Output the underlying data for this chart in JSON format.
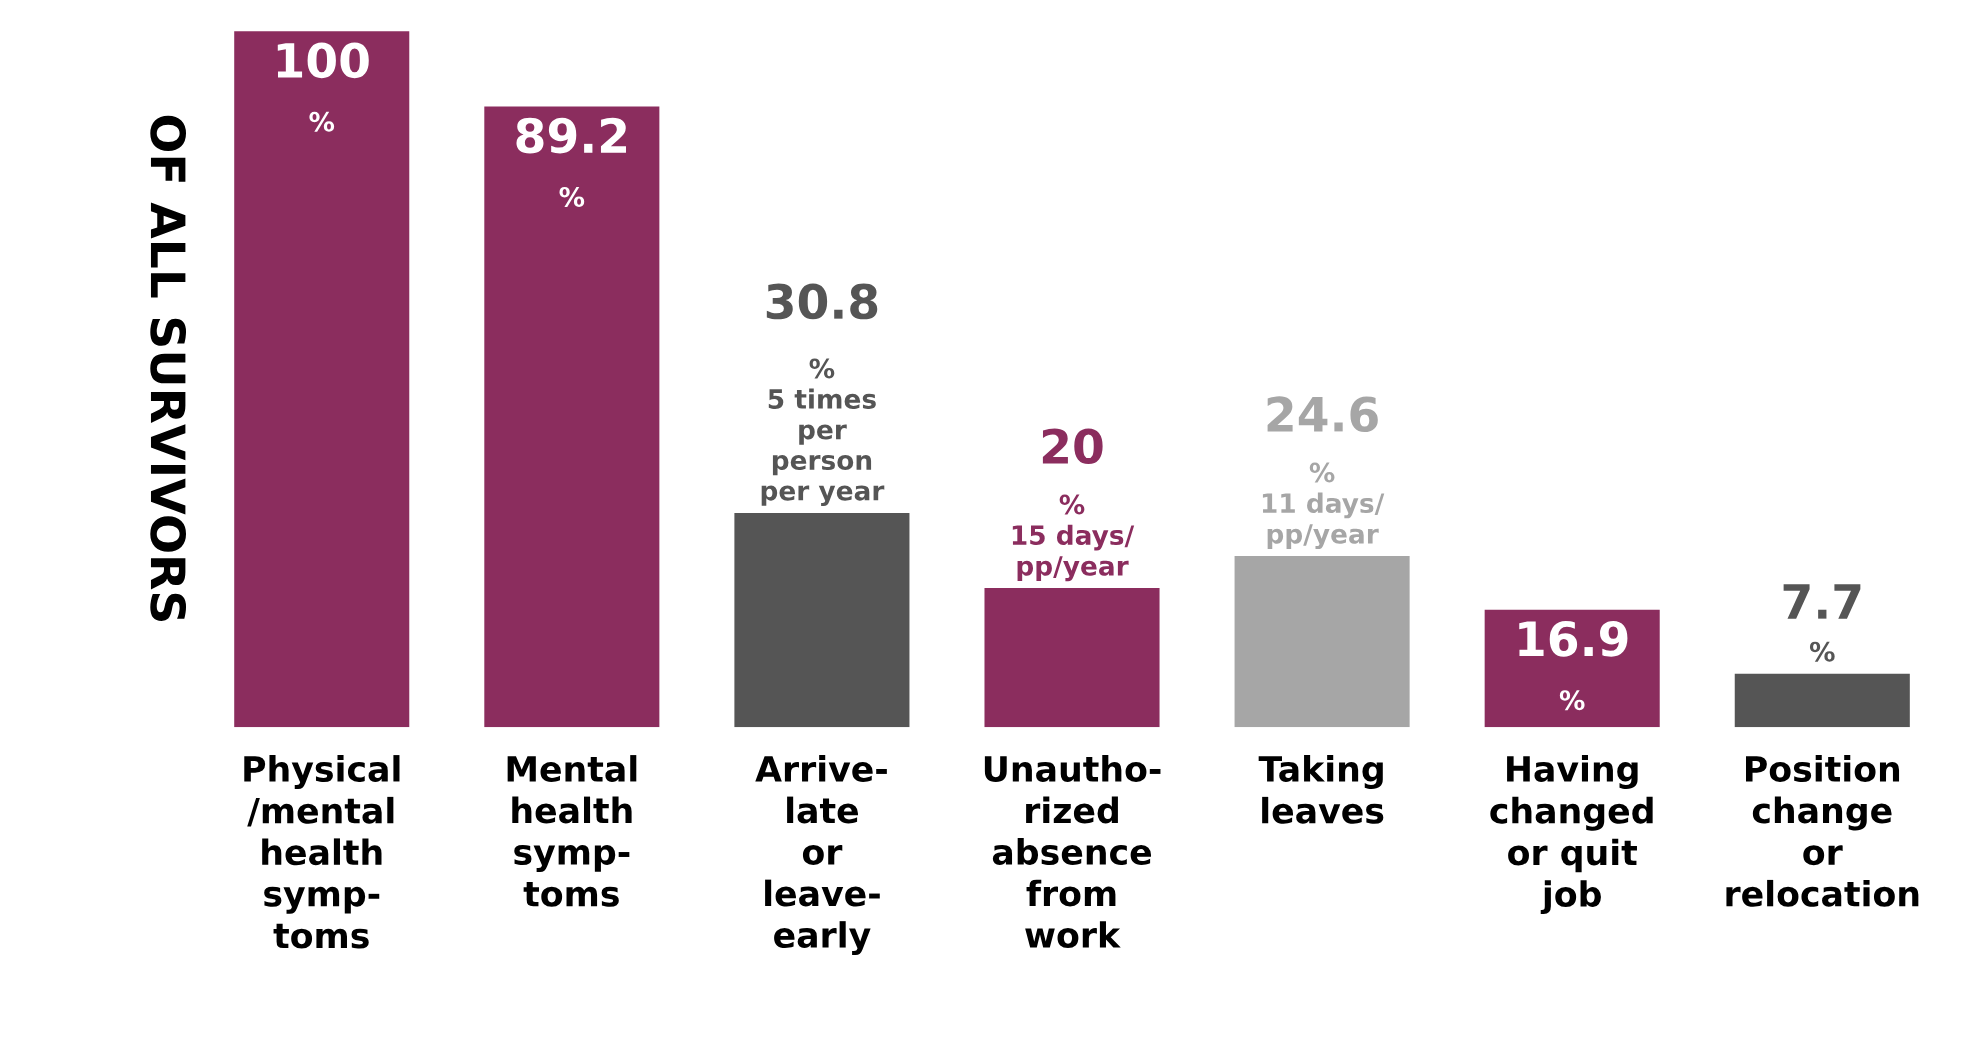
{
  "chart_data": {
    "type": "bar",
    "ylabel": "OF ALL SURVIVORS",
    "categories": [
      "Physical\n/mental\nhealth\nsymp-\ntoms",
      "Mental\nhealth\nsymp-\ntoms",
      "Arrive-\nlate\nor\nleave-\nearly",
      "Unautho-\nrized\nabsence\nfrom\nwork",
      "Taking\nleaves",
      "Having\nchanged\nor quit\njob",
      "Position\nchange\nor\nrelocation"
    ],
    "values": [
      100,
      89.2,
      30.8,
      20,
      24.6,
      16.9,
      7.7
    ],
    "colors": [
      "#8b2d5e",
      "#8b2d5e",
      "#555555",
      "#8b2d5e",
      "#a6a6a6",
      "#8b2d5e",
      "#555555"
    ],
    "value_labels": [
      "100\n%",
      "89.2\n%",
      "30.8\n%\n5 times\nper\nperson\nper year",
      "20\n%\n15 days/\npp/year",
      "24.6\n%\n11 days/\npp/year",
      "16.9\n%",
      "7.7\n%"
    ],
    "grid": false,
    "legend": false
  }
}
